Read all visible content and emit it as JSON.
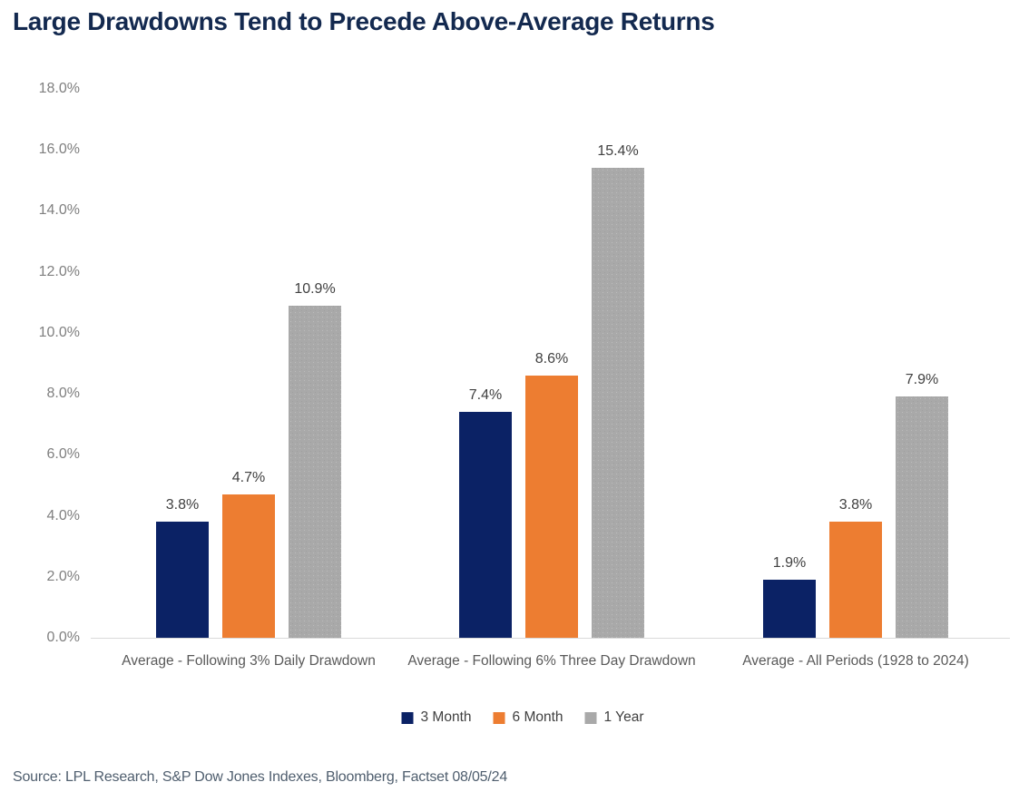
{
  "title": "Large Drawdowns Tend to Precede Above-Average Returns",
  "source": "Source: LPL Research, S&P Dow Jones Indexes, Bloomberg, Factset 08/05/24",
  "chart_data": {
    "type": "bar",
    "title": "Large Drawdowns Tend to Precede Above-Average Returns",
    "categories": [
      "Average - Following 3% Daily Drawdown",
      "Average - Following 6% Three Day Drawdown",
      "Average - All Periods (1928 to 2024)"
    ],
    "series": [
      {
        "name": "3 Month",
        "color": "#0b2265",
        "textured": false,
        "values": [
          3.8,
          7.4,
          1.9
        ],
        "labels": [
          "3.8%",
          "7.4%",
          "1.9%"
        ]
      },
      {
        "name": "6 Month",
        "color": "#ed7d31",
        "textured": false,
        "values": [
          4.7,
          8.6,
          3.8
        ],
        "labels": [
          "4.7%",
          "8.6%",
          "3.8%"
        ]
      },
      {
        "name": "1 Year",
        "color": "#a9a9a9",
        "textured": true,
        "values": [
          10.9,
          15.4,
          7.9
        ],
        "labels": [
          "10.9%",
          "15.4%",
          "7.9%"
        ]
      }
    ],
    "ylim": [
      0,
      18
    ],
    "ytick_step": 2,
    "ytick_labels": [
      "0.0%",
      "2.0%",
      "4.0%",
      "6.0%",
      "8.0%",
      "10.0%",
      "12.0%",
      "14.0%",
      "16.0%",
      "18.0%"
    ],
    "grid": false,
    "legend_position": "bottom",
    "xlabel": "",
    "ylabel": ""
  },
  "colors": {
    "title": "#13294f",
    "axis_label": "#7f7f7f",
    "value_label": "#404040",
    "category_label": "#595959",
    "legend_label": "#404040",
    "source_text": "#4f5e6e",
    "axis_line": "#d9d9d9",
    "background": "#ffffff"
  }
}
